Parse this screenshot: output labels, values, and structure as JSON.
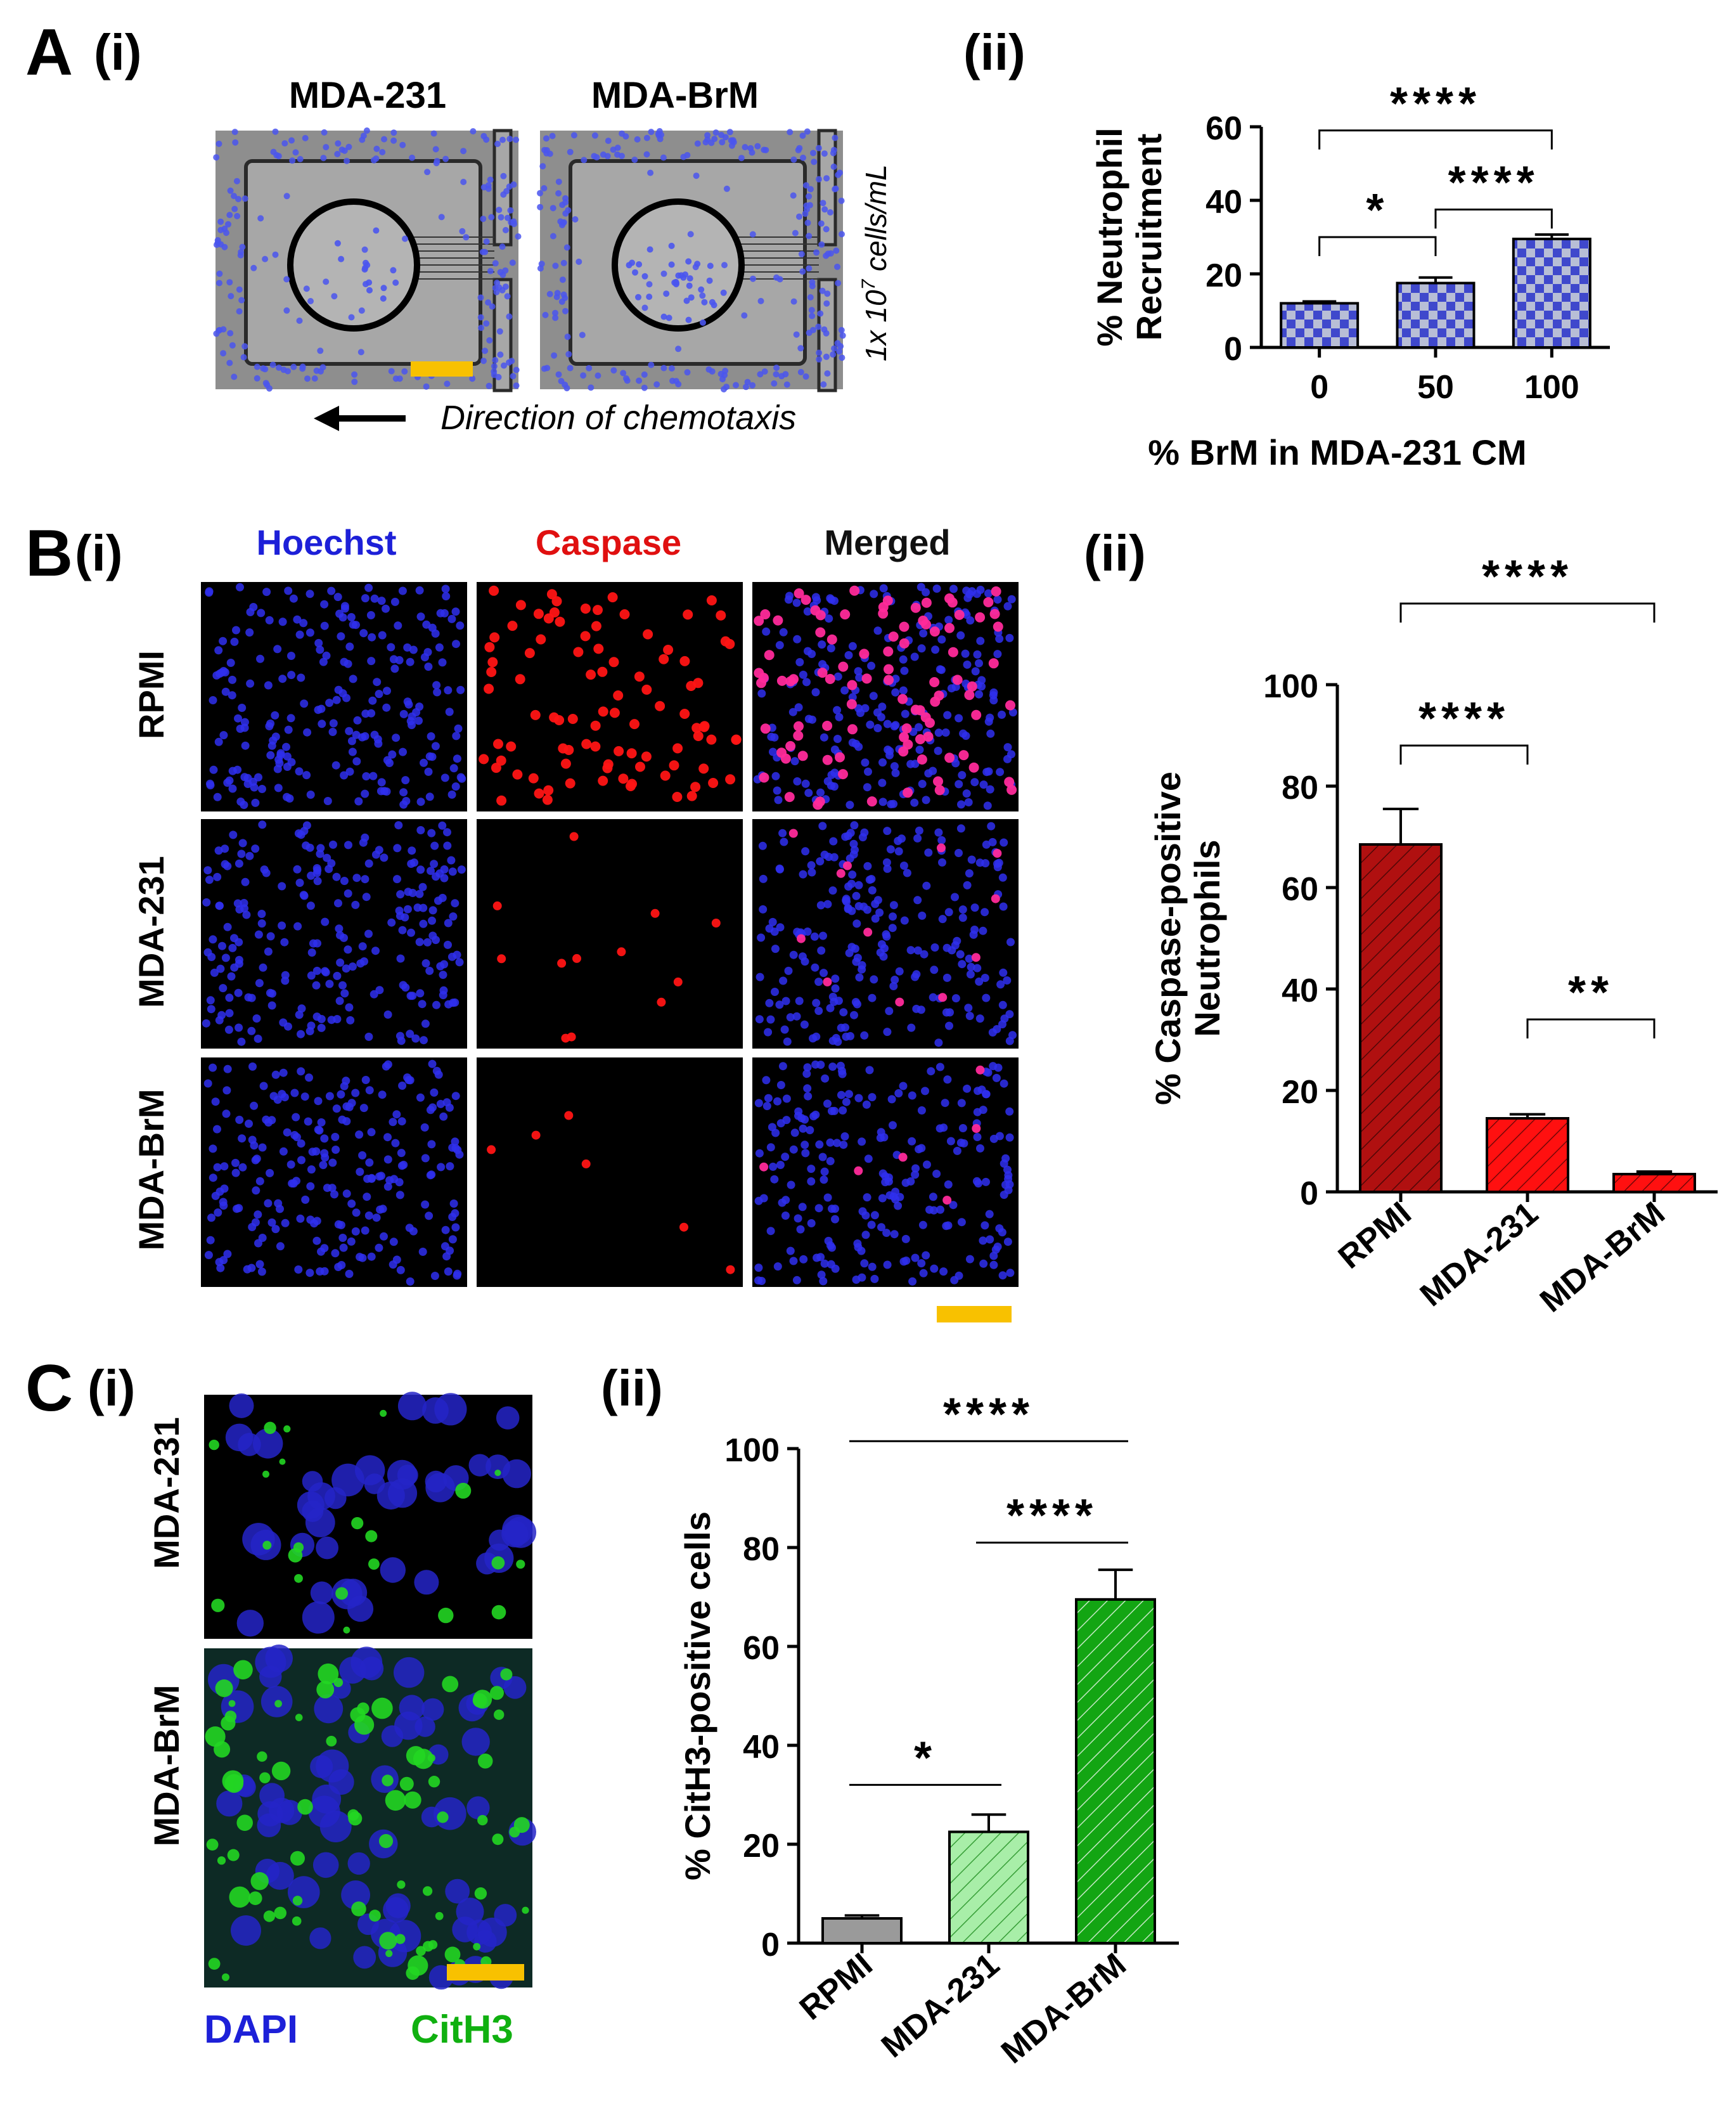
{
  "panel_A": {
    "letter": "A",
    "sub_i": "(i)",
    "sub_ii": "(ii)",
    "image_labels": [
      "MDA-231",
      "MDA-BrM"
    ],
    "density_label_pre": "1x 10",
    "density_label_sup": "7",
    "density_label_post": " cells/mL",
    "chemotaxis_label": "Direction of chemotaxis",
    "colors": {
      "bar_fill": "#3f48cc",
      "checker": "#b8bed6",
      "scale_bar": "#f8c100"
    }
  },
  "panel_B": {
    "letter": "B",
    "sub_i": "(i)",
    "sub_ii": "(ii)",
    "channels": [
      {
        "label": "Hoechst",
        "color": "#1d20d8"
      },
      {
        "label": "Caspase",
        "color": "#e01010"
      },
      {
        "label": "Merged",
        "color": "#111111"
      }
    ],
    "row_labels": [
      "RPMI",
      "MDA-231",
      "MDA-BrM"
    ]
  },
  "panel_C": {
    "letter": "C",
    "sub_i": "(i)",
    "sub_ii": "(ii)",
    "row_labels": [
      "MDA-231",
      "MDA-BrM"
    ],
    "stain_labels": [
      {
        "label": "DAPI",
        "color": "#1d20d8"
      },
      {
        "label": "CitH3",
        "color": "#10b010"
      }
    ]
  },
  "chart_data": [
    {
      "type": "bar",
      "panel": "A(ii)",
      "title": "",
      "xlabel": "%  BrM in MDA-231 CM",
      "ylabel_lines": [
        "% Neutrophil",
        "Recruitment"
      ],
      "categories": [
        "0",
        "50",
        "100"
      ],
      "values": [
        12,
        17.5,
        29.5
      ],
      "errors": [
        0.5,
        1.5,
        1.2
      ],
      "ylim": [
        0,
        60
      ],
      "yticks": [
        0,
        20,
        40,
        60
      ],
      "fill": "#3f48cc",
      "pattern": "checker",
      "significance": [
        {
          "from": 0,
          "to": 1,
          "label": "*"
        },
        {
          "from": 1,
          "to": 2,
          "label": "****"
        },
        {
          "from": 0,
          "to": 2,
          "label": "****"
        }
      ]
    },
    {
      "type": "bar",
      "panel": "B(ii)",
      "title": "",
      "xlabel": "",
      "ylabel_lines": [
        "% Caspase-positive",
        "Neutrophils"
      ],
      "categories": [
        "RPMI",
        "MDA-231",
        "MDA-BrM"
      ],
      "values": [
        68.5,
        14.5,
        3.5
      ],
      "errors": [
        7,
        0.8,
        0.5
      ],
      "ylim": [
        0,
        100
      ],
      "yticks": [
        0,
        20,
        40,
        60,
        80,
        100
      ],
      "fills": [
        "#b01010",
        "#ff1010",
        "#ff1010"
      ],
      "pattern": "diagonal",
      "significance": [
        {
          "from": 0,
          "to": 1,
          "label": "****"
        },
        {
          "from": 1,
          "to": 2,
          "label": "**"
        },
        {
          "from": 0,
          "to": 2,
          "label": "****"
        }
      ]
    },
    {
      "type": "bar",
      "panel": "C(ii)",
      "title": "",
      "xlabel": "",
      "ylabel_lines": [
        "% CitH3-positive cells"
      ],
      "categories": [
        "RPMI",
        "MDA-231",
        "MDA-BrM"
      ],
      "values": [
        5,
        22.5,
        69.5
      ],
      "errors": [
        0.6,
        3.5,
        6
      ],
      "ylim": [
        0,
        100
      ],
      "yticks": [
        0,
        20,
        40,
        60,
        80,
        100
      ],
      "fills": [
        "#9a9a9a",
        "#a8eea8",
        "#13a513"
      ],
      "pattern": "diagonal",
      "significance": [
        {
          "from": 0,
          "to": 1,
          "label": "*"
        },
        {
          "from": 1,
          "to": 2,
          "label": "****"
        },
        {
          "from": 0,
          "to": 2,
          "label": "****"
        }
      ]
    }
  ]
}
